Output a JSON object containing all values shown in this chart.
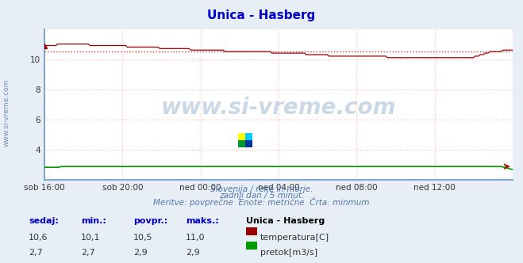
{
  "title": "Unica - Hasberg",
  "bg_color": "#e8eef5",
  "plot_bg_color": "#ffffff",
  "grid_color": "#ffbbbb",
  "grid_style": ":",
  "spine_color": "#6699cc",
  "xlabel_ticks": [
    "sob 16:00",
    "sob 20:00",
    "ned 00:00",
    "ned 04:00",
    "ned 08:00",
    "ned 12:00"
  ],
  "ylabel_ticks": [
    4,
    6,
    8,
    10
  ],
  "ylim": [
    2.0,
    12.0
  ],
  "xlim": [
    0,
    288
  ],
  "n_points": 289,
  "temp_avg": 10.5,
  "temp_color": "#990000",
  "pretok_color": "#009900",
  "avg_line_color": "#cc3333",
  "subtitle1": "Slovenija / reke in morje.",
  "subtitle2": "zadnji dan / 5 minut.",
  "subtitle3": "Meritve: povprečne  Enote: metrične  Črta: minmum",
  "table_header_color": "#0000bb",
  "table_value_color": "#333333",
  "watermark": "www.si-vreme.com",
  "watermark_color": "#336699",
  "side_label": "www.si-vreme.com",
  "table_row1": [
    "10,6",
    "10,1",
    "10,5",
    "11,0"
  ],
  "table_row2": [
    "2,7",
    "2,7",
    "2,9",
    "2,9"
  ],
  "legend_temp": "temperatura[C]",
  "legend_pretok": "pretok[m3/s]",
  "legend_station": "Unica - Hasberg"
}
